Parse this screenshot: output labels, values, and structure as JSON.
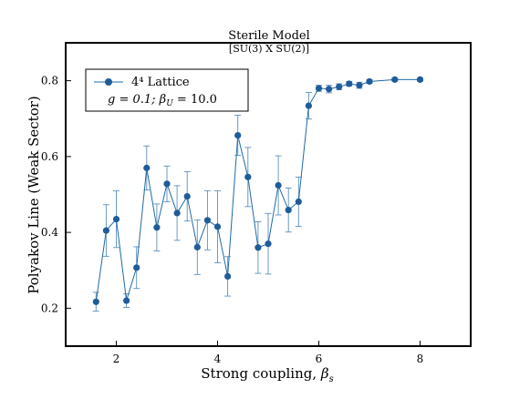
{
  "chart_data": {
    "type": "scatter",
    "title": "Sterile Model",
    "subtitle": "[SU(3) X SU(2)]",
    "xlabel": "Strong coupling, ",
    "xlabel_symbol": "β",
    "xlabel_sub": "s",
    "ylabel": "Polyakov Line (Weak Sector)",
    "xlim": [
      1.0,
      9.0
    ],
    "ylim": [
      0.1,
      0.9
    ],
    "xticks": [
      2,
      4,
      6,
      8
    ],
    "yticks": [
      0.2,
      0.4,
      0.6,
      0.8
    ],
    "xtick_labels": [
      "2",
      "4",
      "6",
      "8"
    ],
    "ytick_labels": [
      "0.2",
      "0.4",
      "0.6",
      "0.8"
    ],
    "grid": false,
    "legend_position": "top-left",
    "series": [
      {
        "name": "4⁴ Lattice",
        "legend_line2": "g = 0.1;  β",
        "legend_line2_sub": "U",
        "legend_line2_tail": " = 10.0",
        "color": "#1f5c99",
        "x": [
          1.6,
          1.8,
          2.0,
          2.2,
          2.4,
          2.6,
          2.8,
          3.0,
          3.2,
          3.4,
          3.6,
          3.8,
          4.0,
          4.2,
          4.4,
          4.6,
          4.8,
          5.0,
          5.2,
          5.4,
          5.6,
          5.8,
          6.0,
          6.2,
          6.4,
          6.6,
          6.8,
          7.0,
          7.5,
          8.0
        ],
        "y": [
          0.217,
          0.405,
          0.435,
          0.22,
          0.307,
          0.57,
          0.413,
          0.528,
          0.451,
          0.495,
          0.361,
          0.432,
          0.415,
          0.284,
          0.656,
          0.546,
          0.36,
          0.37,
          0.524,
          0.459,
          0.481,
          0.734,
          0.78,
          0.778,
          0.784,
          0.792,
          0.788,
          0.798,
          0.803,
          0.803
        ],
        "yerr": [
          0.025,
          0.068,
          0.075,
          0.018,
          0.055,
          0.058,
          0.062,
          0.047,
          0.072,
          0.065,
          0.072,
          0.078,
          0.095,
          0.052,
          0.053,
          0.078,
          0.068,
          0.08,
          0.078,
          0.058,
          0.065,
          0.035,
          0.008,
          0.01,
          0.008,
          0.006,
          0.008,
          0.005,
          0.004,
          0.004
        ]
      }
    ]
  }
}
